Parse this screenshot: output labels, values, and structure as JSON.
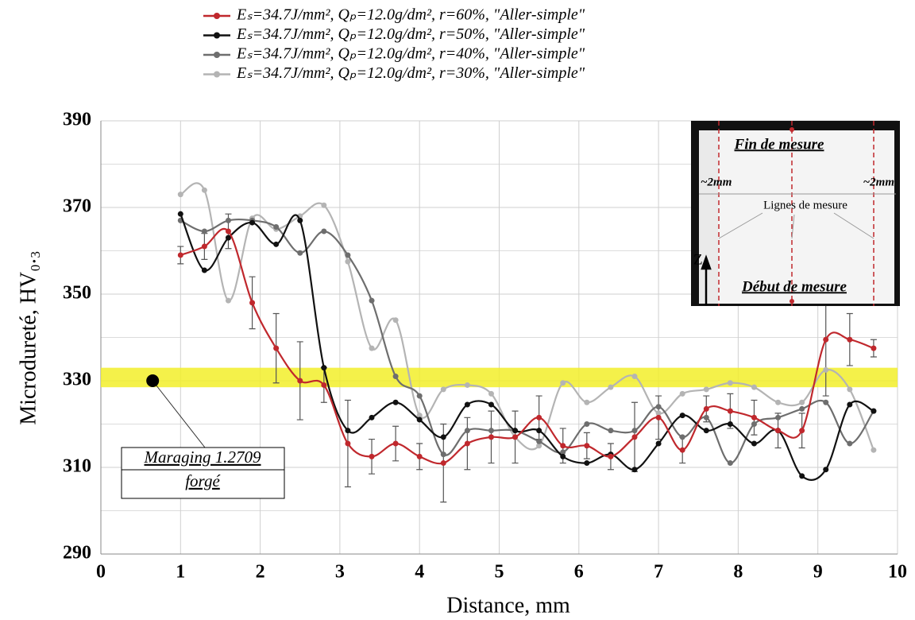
{
  "chart_data": {
    "type": "line",
    "x_label": "Distance, mm",
    "y_label": "Microdureté, HV₀.₃",
    "x": [
      1,
      1.3,
      1.6,
      1.9,
      2.2,
      2.5,
      2.8,
      3.1,
      3.4,
      3.7,
      4.0,
      4.3,
      4.6,
      4.9,
      5.2,
      5.5,
      5.8,
      6.1,
      6.4,
      6.7,
      7.0,
      7.3,
      7.6,
      7.9,
      8.2,
      8.5,
      8.8,
      9.1,
      9.4,
      9.7
    ],
    "series": [
      {
        "name": "Eₛ=34.7J/mm², Qₚ=12.0g/dm², r=60%, \"Aller-simple\"",
        "color": "#c0282d",
        "values": [
          359,
          361,
          364.5,
          348,
          337.5,
          330,
          329,
          315.5,
          312.5,
          315.5,
          312.5,
          311,
          315.5,
          317,
          317,
          321.5,
          315,
          315,
          312.5,
          317,
          321.5,
          314,
          323.5,
          323,
          321.5,
          318.5,
          318.5,
          339.5,
          339.5,
          337.5
        ],
        "errors": [
          2,
          3,
          4,
          6,
          8,
          9,
          4,
          10,
          4,
          4,
          3,
          9,
          6,
          6,
          6,
          5,
          4,
          3,
          3,
          8,
          5,
          3,
          3,
          4,
          4,
          4,
          4,
          13,
          6,
          2
        ]
      },
      {
        "name": "Eₛ=34.7J/mm², Qₚ=12.0g/dm², r=50%, \"Aller-simple\"",
        "color": "#111111",
        "values": [
          368.5,
          355.5,
          363,
          366.5,
          361.5,
          367,
          333,
          318.5,
          321.5,
          325,
          321,
          317,
          324.5,
          324.5,
          318.5,
          318.5,
          312.5,
          311,
          313,
          309.5,
          315.5,
          322,
          318.5,
          320,
          315.5,
          318.5,
          308,
          309.5,
          324.5,
          323
        ]
      },
      {
        "name": "Eₛ=34.7J/mm², Qₚ=12.0g/dm², r=40%, \"Aller-simple\"",
        "color": "#6e6e6e",
        "values": [
          367,
          364.5,
          367,
          367,
          365.5,
          359.5,
          364.5,
          359,
          348.5,
          331,
          326.5,
          313,
          318.5,
          318.5,
          318.5,
          316,
          313.5,
          320,
          318.5,
          318.5,
          324,
          317,
          321.5,
          311,
          320,
          321.5,
          323.5,
          325,
          315.5,
          323
        ]
      },
      {
        "name": "Eₛ=34.7J/mm², Qₚ=12.0g/dm², r=30%, \"Aller-simple\"",
        "color": "#b4b4b4",
        "values": [
          373,
          374,
          348.5,
          367.5,
          365,
          368,
          370.5,
          357.5,
          337.5,
          344,
          322,
          328,
          329,
          327,
          317,
          315,
          329.5,
          325,
          328.5,
          331,
          322.5,
          327,
          328,
          329.5,
          328.5,
          325,
          325,
          332.5,
          328,
          314
        ]
      }
    ],
    "xlim": [
      0,
      10
    ],
    "xticks": [
      0,
      1,
      2,
      3,
      4,
      5,
      6,
      7,
      8,
      9,
      10
    ],
    "ylim": [
      290,
      390
    ],
    "yticks": [
      290,
      310,
      330,
      350,
      370,
      390
    ],
    "y_minor_ticks": [
      300,
      320,
      340,
      360,
      380
    ],
    "grid": true,
    "band": [
      328.5,
      333
    ],
    "band_color": "#f2ee2a",
    "annotation": {
      "lines": [
        "Maraging 1.2709",
        "forgé"
      ],
      "x": 0.65,
      "y": 330
    },
    "inset": {
      "top_label": "Fin de mesure",
      "left_width": "~2mm",
      "right_width": "~2mm",
      "lines_label": "Lignes de mesure",
      "axis_label": "Z",
      "bottom_label": "Début de mesure"
    }
  }
}
